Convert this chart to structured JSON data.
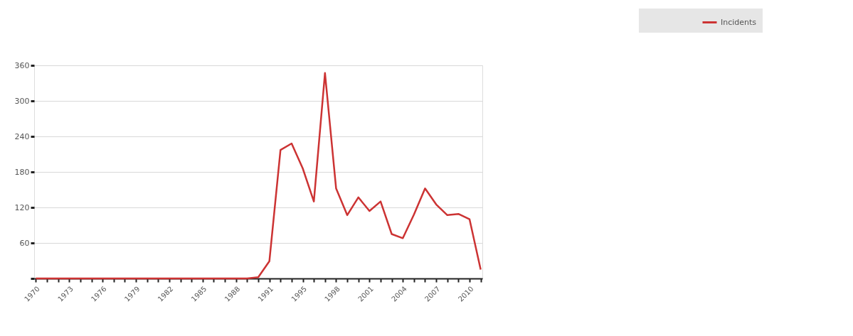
{
  "chart_data": {
    "type": "line",
    "categories": [
      "1970",
      null,
      null,
      "1973",
      null,
      null,
      "1976",
      null,
      null,
      "1979",
      null,
      null,
      "1982",
      null,
      null,
      "1985",
      null,
      null,
      "1988",
      null,
      null,
      "1991",
      null,
      null,
      "1995",
      null,
      null,
      "1998",
      null,
      null,
      "2001",
      null,
      null,
      "2004",
      null,
      null,
      "2007",
      null,
      null,
      "2010",
      null
    ],
    "series": [
      {
        "name": "Incidents",
        "color": "#cc3333",
        "values": [
          0,
          0,
          0,
          0,
          0,
          0,
          0,
          0,
          0,
          0,
          0,
          0,
          0,
          0,
          0,
          0,
          0,
          0,
          0,
          0,
          2,
          29,
          217,
          228,
          186,
          130,
          347,
          152,
          107,
          137,
          114,
          130,
          75,
          68,
          108,
          152,
          125,
          107,
          109,
          100,
          15
        ]
      }
    ],
    "ylim": [
      0,
      360
    ],
    "yticks": [
      {
        "value": 0,
        "label": null
      },
      60,
      120,
      180,
      240,
      300,
      360
    ],
    "grid": "y",
    "legend": "top right",
    "marker": "none",
    "line_style": "solid"
  }
}
